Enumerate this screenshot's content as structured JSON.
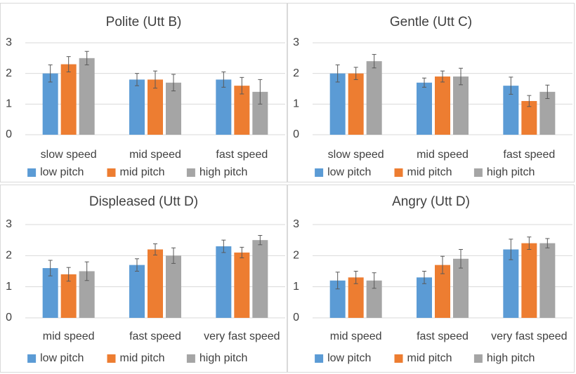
{
  "legend_labels": [
    "low pitch",
    "mid pitch",
    "high pitch"
  ],
  "colors": [
    "#5b9bd5",
    "#ed7d31",
    "#a5a5a5"
  ],
  "chart_data": [
    {
      "type": "bar",
      "title": "Polite (Utt B)",
      "categories": [
        "slow speed",
        "mid speed",
        "fast speed"
      ],
      "series": [
        {
          "name": "low pitch",
          "values": [
            2.0,
            1.8,
            1.8
          ],
          "errors": [
            0.28,
            0.2,
            0.25
          ]
        },
        {
          "name": "mid pitch",
          "values": [
            2.3,
            1.8,
            1.6
          ],
          "errors": [
            0.25,
            0.28,
            0.27
          ]
        },
        {
          "name": "high pitch",
          "values": [
            2.5,
            1.7,
            1.4
          ],
          "errors": [
            0.22,
            0.27,
            0.4
          ]
        }
      ],
      "ylim": [
        0,
        3
      ],
      "yticks": [
        0,
        1,
        2,
        3
      ],
      "grid": true,
      "legend": "bottom"
    },
    {
      "type": "bar",
      "title": "Gentle (Utt C)",
      "categories": [
        "slow speed",
        "mid speed",
        "fast speed"
      ],
      "series": [
        {
          "name": "low pitch",
          "values": [
            2.0,
            1.7,
            1.6
          ],
          "errors": [
            0.28,
            0.15,
            0.28
          ]
        },
        {
          "name": "mid pitch",
          "values": [
            2.0,
            1.9,
            1.1
          ],
          "errors": [
            0.2,
            0.18,
            0.18
          ]
        },
        {
          "name": "high pitch",
          "values": [
            2.4,
            1.9,
            1.4
          ],
          "errors": [
            0.22,
            0.27,
            0.22
          ]
        }
      ],
      "ylim": [
        0,
        3
      ],
      "yticks": [
        0,
        1,
        2,
        3
      ],
      "grid": true,
      "legend": "bottom"
    },
    {
      "type": "bar",
      "title": "Displeased (Utt D)",
      "categories": [
        "mid speed",
        "fast speed",
        "very fast speed"
      ],
      "series": [
        {
          "name": "low pitch",
          "values": [
            1.6,
            1.7,
            2.3
          ],
          "errors": [
            0.25,
            0.2,
            0.2
          ]
        },
        {
          "name": "mid pitch",
          "values": [
            1.4,
            2.2,
            2.1
          ],
          "errors": [
            0.22,
            0.18,
            0.17
          ]
        },
        {
          "name": "high pitch",
          "values": [
            1.5,
            2.0,
            2.5
          ],
          "errors": [
            0.3,
            0.25,
            0.15
          ]
        }
      ],
      "ylim": [
        0,
        3
      ],
      "yticks": [
        0,
        1,
        2,
        3
      ],
      "grid": true,
      "legend": "bottom"
    },
    {
      "type": "bar",
      "title": "Angry (Utt D)",
      "categories": [
        "mid speed",
        "fast speed",
        "very fast speed"
      ],
      "series": [
        {
          "name": "low pitch",
          "values": [
            1.2,
            1.3,
            2.2
          ],
          "errors": [
            0.27,
            0.2,
            0.33
          ]
        },
        {
          "name": "mid pitch",
          "values": [
            1.3,
            1.7,
            2.4
          ],
          "errors": [
            0.2,
            0.28,
            0.2
          ]
        },
        {
          "name": "high pitch",
          "values": [
            1.2,
            1.9,
            2.4
          ],
          "errors": [
            0.25,
            0.3,
            0.15
          ]
        }
      ],
      "ylim": [
        0,
        3
      ],
      "yticks": [
        0,
        1,
        2,
        3
      ],
      "grid": true,
      "legend": "bottom"
    }
  ]
}
